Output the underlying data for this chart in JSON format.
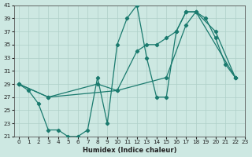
{
  "bg_color": "#cde8e2",
  "line_color": "#1a7a6e",
  "grid_color": "#aecfc8",
  "xlim": [
    -0.5,
    23
  ],
  "ylim": [
    21,
    41
  ],
  "xticks": [
    0,
    1,
    2,
    3,
    4,
    5,
    6,
    7,
    8,
    9,
    10,
    11,
    12,
    13,
    14,
    15,
    16,
    17,
    18,
    19,
    20,
    21,
    22,
    23
  ],
  "yticks": [
    21,
    23,
    25,
    27,
    29,
    31,
    33,
    35,
    37,
    39,
    41
  ],
  "xlabel": "Humidex (Indice chaleur)",
  "series": [
    {
      "x": [
        0,
        1,
        2,
        3,
        4,
        5,
        6,
        7,
        8,
        9,
        10,
        11,
        12,
        13,
        14,
        15,
        16,
        17,
        18,
        19,
        20,
        21,
        22
      ],
      "y": [
        29,
        28,
        26,
        22,
        22,
        21,
        21,
        22,
        30,
        23,
        35,
        39,
        41,
        33,
        27,
        27,
        37,
        40,
        40,
        39,
        36,
        32,
        30
      ]
    },
    {
      "x": [
        0,
        3,
        10,
        15,
        17,
        18,
        22
      ],
      "y": [
        29,
        27,
        28,
        30,
        38,
        40,
        30
      ]
    },
    {
      "x": [
        0,
        3,
        8,
        10,
        12,
        13,
        14,
        15,
        16,
        17,
        18,
        20,
        22
      ],
      "y": [
        29,
        27,
        29,
        28,
        34,
        35,
        35,
        36,
        37,
        40,
        40,
        37,
        30
      ]
    }
  ]
}
